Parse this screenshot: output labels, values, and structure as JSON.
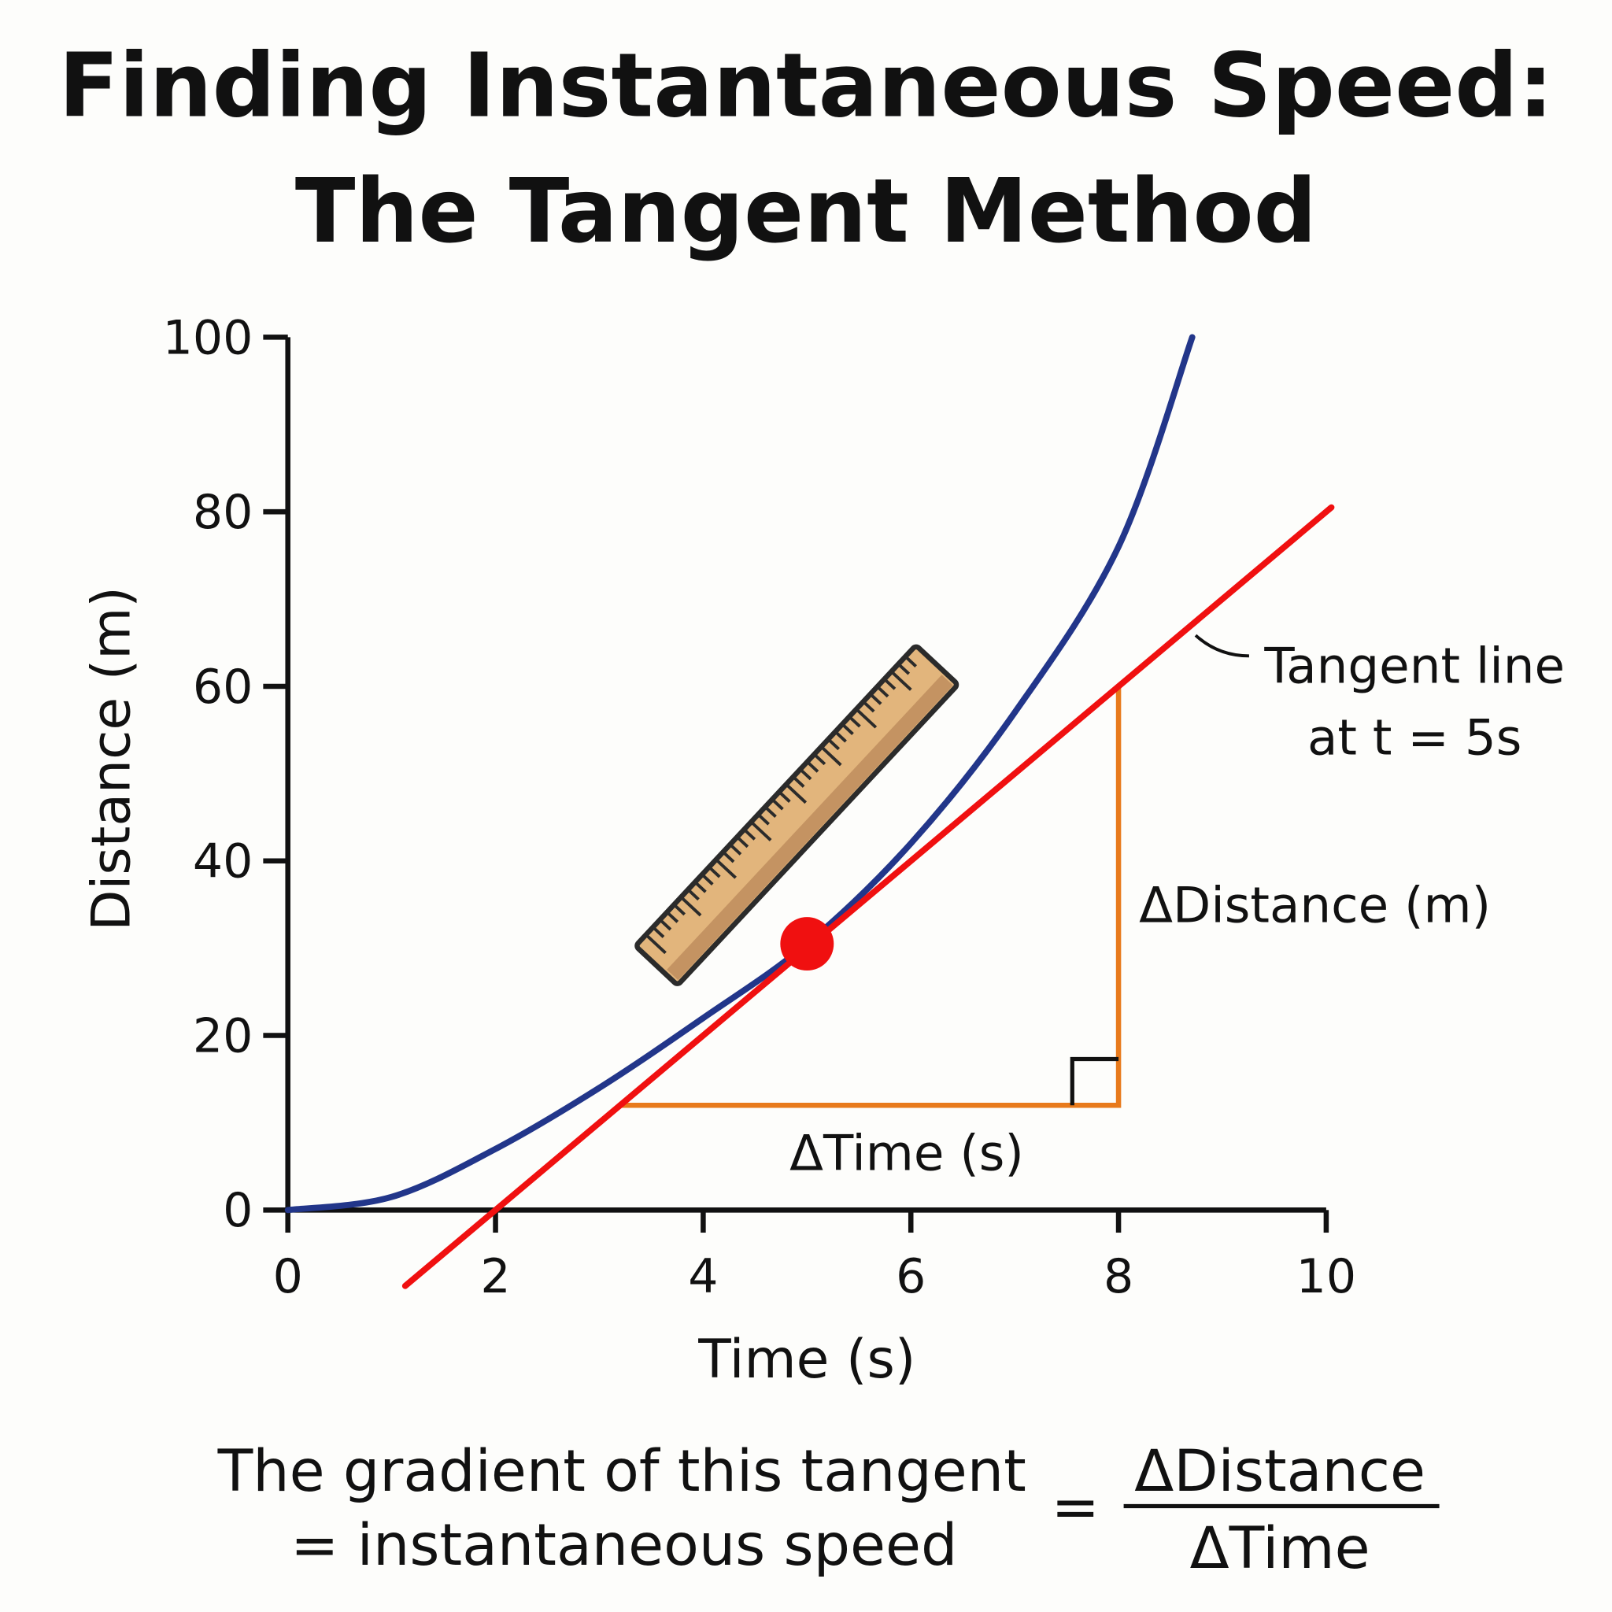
{
  "title_line1": "Finding Instantaneous Speed:",
  "title_line2": "The Tangent Method",
  "chart_data": {
    "type": "line",
    "xlabel": "Time (s)",
    "ylabel": "Distance (m)",
    "xlim": [
      0,
      10
    ],
    "ylim": [
      0,
      100
    ],
    "xticks": [
      0,
      2,
      4,
      6,
      8,
      10
    ],
    "yticks": [
      0,
      20,
      40,
      60,
      80,
      100
    ],
    "grid": false,
    "series": [
      {
        "kind": "curve",
        "color": "#22368a",
        "x": [
          0,
          1,
          2,
          3,
          4,
          5,
          6,
          7,
          8,
          8.71
        ],
        "y": [
          0,
          1.5,
          7,
          14,
          22,
          30.5,
          42,
          57,
          76,
          100
        ]
      },
      {
        "kind": "tangent",
        "color": "#f01010",
        "slope": 10,
        "intercept": -20,
        "x_range": [
          1.13,
          10.05
        ]
      }
    ],
    "point": {
      "x": 5,
      "y": 30.5,
      "color": "#f01010"
    },
    "triangle": {
      "x_start": 3.2,
      "x_end": 8,
      "y_start": 12,
      "y_end": 60,
      "color": "#e87a1c"
    },
    "annotations": {
      "tangent_label_line1": "Tangent line",
      "tangent_label_line2": "at t = 5s",
      "delta_distance": "ΔDistance (m)",
      "delta_time": "ΔTime (s)"
    }
  },
  "footer": {
    "line1": "The gradient of this tangent",
    "line2": "= instantaneous speed",
    "equals": "=",
    "numerator": "ΔDistance",
    "denominator": "ΔTime"
  },
  "icons": {
    "ruler": "ruler-icon"
  }
}
